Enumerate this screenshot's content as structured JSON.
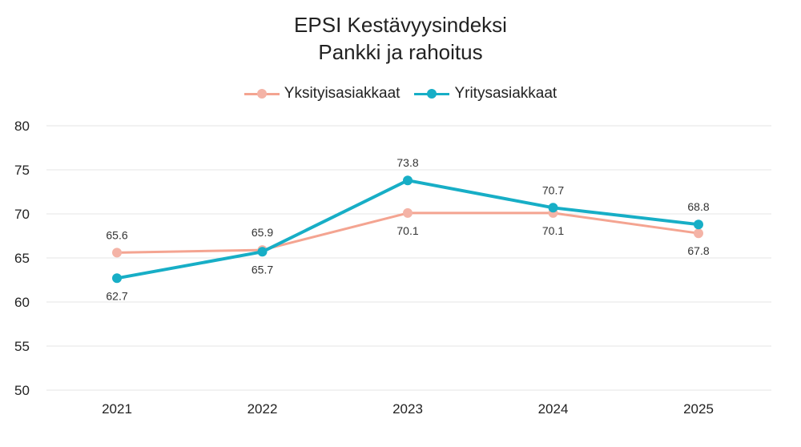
{
  "chart_data": {
    "type": "line",
    "title": "EPSI Kestävyysindeksi",
    "subtitle": "Pankki ja rahoitus",
    "categories": [
      "2021",
      "2022",
      "2023",
      "2024",
      "2025"
    ],
    "series": [
      {
        "name": "Yksityisasiakkaat",
        "values": [
          65.6,
          65.9,
          70.1,
          70.1,
          67.8
        ],
        "color": "#f4a491",
        "label_position": [
          "above",
          "above",
          "below",
          "below",
          "below"
        ]
      },
      {
        "name": "Yritysasiakkaat",
        "values": [
          62.7,
          65.7,
          73.8,
          70.7,
          68.8
        ],
        "color": "#17aec6",
        "label_position": [
          "below",
          "below",
          "above",
          "above",
          "above"
        ]
      }
    ],
    "yticks": [
      50,
      55,
      60,
      65,
      70,
      75,
      80
    ],
    "ylim": [
      50,
      80
    ],
    "grid": true,
    "legend_position": "top-center"
  }
}
